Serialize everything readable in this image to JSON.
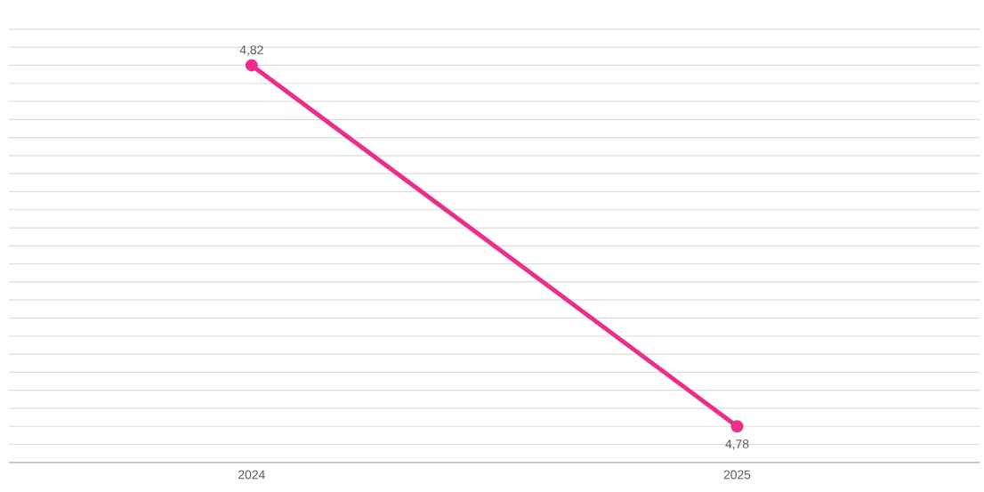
{
  "chart_data": {
    "type": "line",
    "categories": [
      "2024",
      "2025"
    ],
    "series": [
      {
        "color": "#ec2e8a",
        "values": [
          4.82,
          4.78
        ],
        "value_labels": [
          "4,82",
          "4,78"
        ]
      }
    ],
    "tick_labels": "x",
    "grid": "y",
    "marker": "circle",
    "line_style": "solid"
  }
}
